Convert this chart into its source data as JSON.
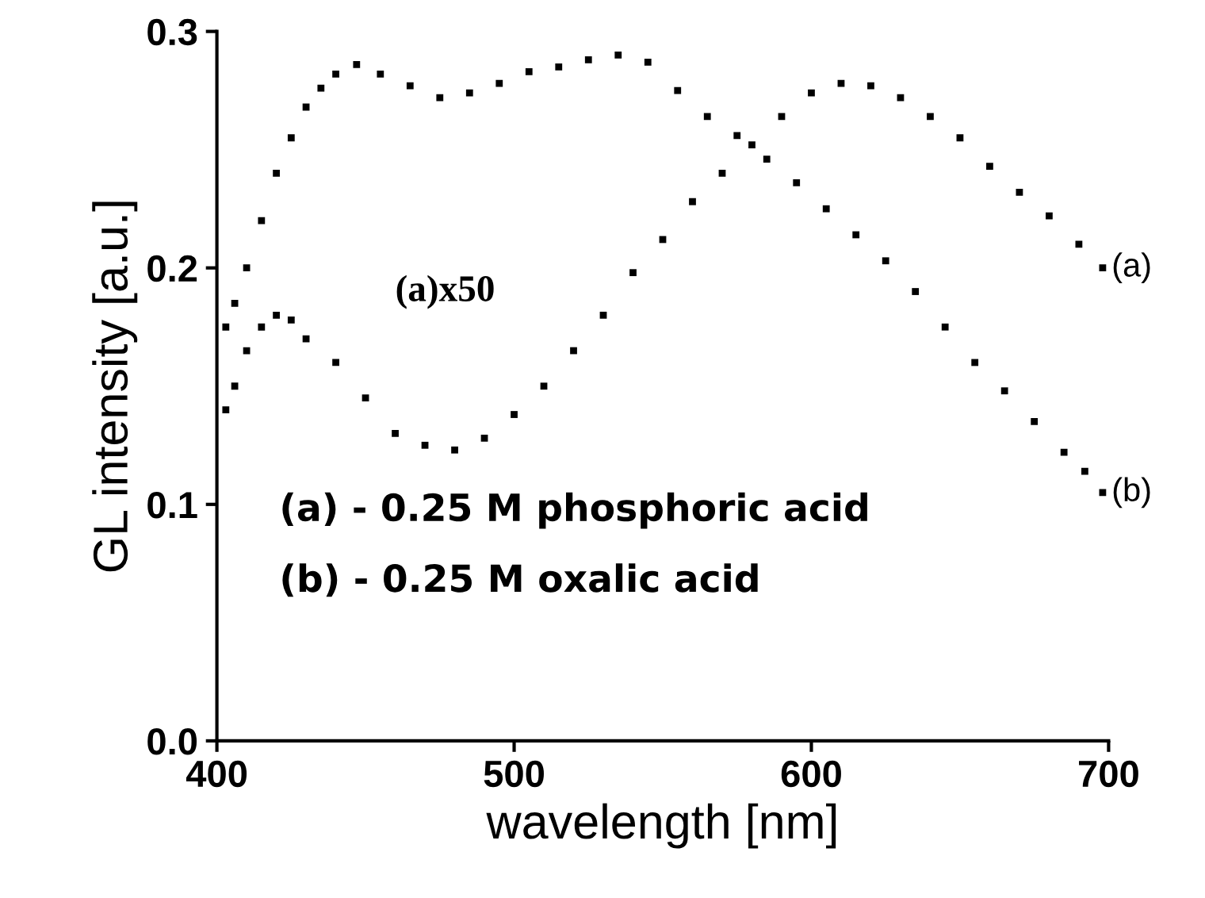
{
  "chart_data": {
    "type": "scatter",
    "xlabel": "wavelength [nm]",
    "ylabel": "GL intensity [a.u.]",
    "xlim": [
      400,
      700
    ],
    "xticks": [
      400,
      500,
      600,
      700
    ],
    "ylim": [
      0.0,
      0.3
    ],
    "yticks": [
      {
        "value": 0.0,
        "label": "0.0"
      },
      0.1,
      0.2,
      0.3
    ],
    "marker": "square",
    "grid": false,
    "legend": false,
    "annotations": [
      "(a)x50",
      "(a) - 0.25 M phosphoric acid",
      "(b) - 0.25 M oxalic acid"
    ],
    "series": [
      {
        "name": "(a)",
        "color": "#000000",
        "x": [
          403,
          406,
          410,
          415,
          420,
          425,
          430,
          440,
          450,
          460,
          470,
          480,
          490,
          500,
          510,
          520,
          530,
          540,
          550,
          560,
          570,
          580,
          590,
          600,
          610,
          620,
          630,
          640,
          650,
          660,
          670,
          680,
          690,
          698
        ],
        "values": [
          0.14,
          0.15,
          0.165,
          0.175,
          0.18,
          0.178,
          0.17,
          0.16,
          0.145,
          0.13,
          0.125,
          0.123,
          0.128,
          0.138,
          0.15,
          0.165,
          0.18,
          0.198,
          0.212,
          0.228,
          0.24,
          0.252,
          0.264,
          0.274,
          0.278,
          0.277,
          0.272,
          0.264,
          0.255,
          0.243,
          0.232,
          0.222,
          0.21,
          0.2
        ]
      },
      {
        "name": "(b)",
        "color": "#000000",
        "x": [
          403,
          406,
          410,
          415,
          420,
          425,
          430,
          435,
          440,
          447,
          455,
          465,
          475,
          485,
          495,
          505,
          515,
          525,
          535,
          545,
          555,
          565,
          575,
          585,
          595,
          605,
          615,
          625,
          635,
          645,
          655,
          665,
          675,
          685,
          692,
          698
        ],
        "values": [
          0.175,
          0.185,
          0.2,
          0.22,
          0.24,
          0.255,
          0.268,
          0.276,
          0.282,
          0.286,
          0.282,
          0.277,
          0.272,
          0.274,
          0.278,
          0.283,
          0.285,
          0.288,
          0.29,
          0.287,
          0.275,
          0.264,
          0.256,
          0.246,
          0.236,
          0.225,
          0.214,
          0.203,
          0.19,
          0.175,
          0.16,
          0.148,
          0.135,
          0.122,
          0.114,
          0.105
        ]
      }
    ]
  }
}
